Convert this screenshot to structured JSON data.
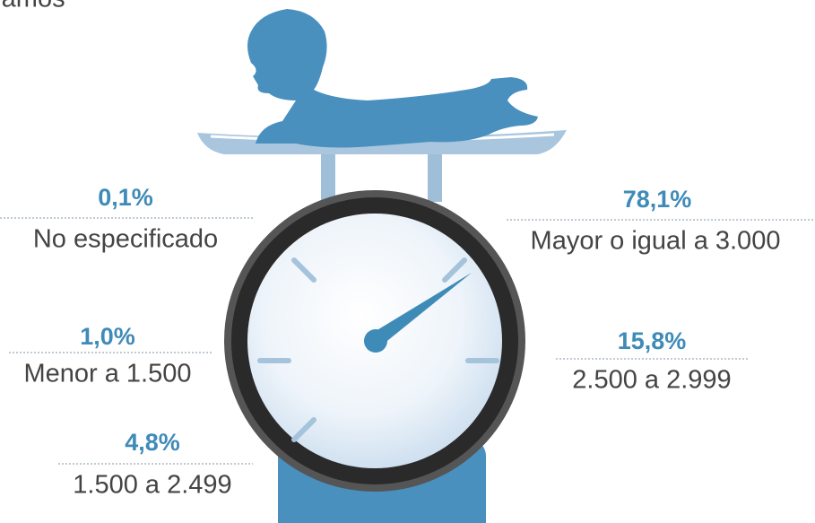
{
  "header": {
    "title": "ramos"
  },
  "items": [
    {
      "value": "0,1%",
      "label": "No especificado"
    },
    {
      "value": "78,1%",
      "label": "Mayor o igual a 3.000"
    },
    {
      "value": "1,0%",
      "label": "Menor a 1.500"
    },
    {
      "value": "15,8%",
      "label": "2.500 a 2.999"
    },
    {
      "value": "4,8%",
      "label": "1.500 a 2.499"
    }
  ]
}
